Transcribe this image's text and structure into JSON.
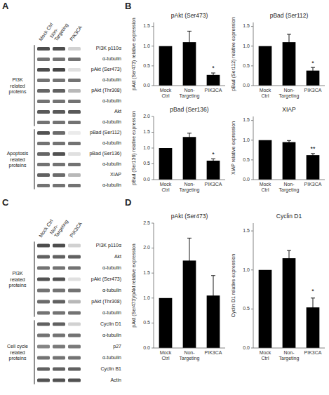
{
  "chart_data": [
    {
      "type": "heatmap",
      "panel": "A",
      "x": [
        "Mock Ctrl",
        "Non-\nTargeting",
        "PIK3CA"
      ],
      "y": [
        "PI3K p110α",
        "α-tubulin",
        "pAkt (Ser473)",
        "α-tubulin",
        "pAkt (Thr308)",
        "α-tubulin",
        "Akt",
        "α-tubulin",
        "pBad (Ser112)",
        "α-tubulin",
        "pBad (Ser136)",
        "α-tubulin",
        "XIAP",
        "α-tubulin"
      ],
      "cells": [
        [
          0.7,
          0.7,
          0.18
        ],
        [
          0.55,
          0.55,
          0.55
        ],
        [
          0.7,
          0.72,
          0.12
        ],
        [
          0.55,
          0.55,
          0.55
        ],
        [
          0.6,
          0.62,
          0.28
        ],
        [
          0.55,
          0.55,
          0.55
        ],
        [
          0.65,
          0.65,
          0.65
        ],
        [
          0.55,
          0.55,
          0.55
        ],
        [
          0.68,
          0.58,
          0.08
        ],
        [
          0.55,
          0.55,
          0.55
        ],
        [
          0.6,
          0.68,
          0.12
        ],
        [
          0.55,
          0.55,
          0.55
        ],
        [
          0.62,
          0.58,
          0.28
        ],
        [
          0.55,
          0.55,
          0.55
        ]
      ],
      "groups": [
        {
          "name": "PI3K\nrelated\nproteins",
          "start": 0,
          "end": 8
        },
        {
          "name": "Apoptosis\nrelated\nproteins",
          "start": 8,
          "end": 14
        }
      ]
    },
    {
      "type": "bar",
      "panel": "B",
      "title": "pAkt (Ser473)",
      "categories": [
        "Mock\nCtrl",
        "Non-\nTargeting",
        "PIK3CA"
      ],
      "values": [
        1.0,
        1.1,
        0.27
      ],
      "errors": [
        0.0,
        0.28,
        0.05
      ],
      "ylabel": "pAkt (Ser473) relative expression",
      "ylim": [
        0,
        1.6
      ],
      "yticks": [
        {
          "value": 0,
          "label": "0.0"
        },
        0.5,
        {
          "value": 1,
          "label": "1.0"
        },
        1.5
      ],
      "color": "#000000",
      "annotations": [
        {
          "category": "PIK3CA",
          "text": "*"
        }
      ]
    },
    {
      "type": "bar",
      "title": "pBad (Ser112)",
      "categories": [
        "Mock\nCtrl",
        "Non-\nTargeting",
        "PIK3CA"
      ],
      "values": [
        1.0,
        1.1,
        0.38
      ],
      "errors": [
        0.0,
        0.2,
        0.08
      ],
      "ylabel": "pBad (Ser112) relative expression",
      "ylim": [
        0,
        1.6
      ],
      "yticks": [
        {
          "value": 0,
          "label": "0.0"
        },
        0.5,
        {
          "value": 1,
          "label": "1.0"
        },
        1.5
      ],
      "color": "#000000",
      "annotations": [
        {
          "category": "PIK3CA",
          "text": "*"
        }
      ]
    },
    {
      "type": "bar",
      "title": "pBad (Ser136)",
      "categories": [
        "Mock\nCtrl",
        "Non-\nTargeting",
        "PIK3CA"
      ],
      "values": [
        1.0,
        1.35,
        0.6
      ],
      "errors": [
        0.0,
        0.12,
        0.06
      ],
      "ylabel": "pBad (Ser136) relative expression",
      "ylim": [
        0,
        2.0
      ],
      "yticks": [
        {
          "value": 0,
          "label": "0.0"
        },
        0.5,
        {
          "value": 1,
          "label": "1.0"
        },
        1.5,
        {
          "value": 2,
          "label": "2.0"
        }
      ],
      "color": "#000000",
      "annotations": [
        {
          "category": "PIK3CA",
          "text": "*"
        }
      ]
    },
    {
      "type": "bar",
      "title": "XIAP",
      "categories": [
        "Mock\nCtrl",
        "Non-\nTargeting",
        "PIK3CA"
      ],
      "values": [
        1.0,
        0.95,
        0.62
      ],
      "errors": [
        0.0,
        0.04,
        0.04
      ],
      "ylabel": "XIAP relative expression",
      "ylim": [
        0,
        1.6
      ],
      "yticks": [
        {
          "value": 0,
          "label": "0.0"
        },
        0.5,
        {
          "value": 1,
          "label": "1.0"
        },
        1.5
      ],
      "color": "#000000",
      "annotations": [
        {
          "category": "PIK3CA",
          "text": "**"
        }
      ]
    },
    {
      "type": "heatmap",
      "panel": "C",
      "x": [
        "Mock Ctrl",
        "Non-\nTargeting",
        "PIK3CA"
      ],
      "y": [
        "PI3K p110α",
        "Akt",
        "α-tubulin",
        "pAkt (Ser473)",
        "α-tubulin",
        "pAkt (Thr308)",
        "α-tubulin",
        "Cyclin D1",
        "α-tubulin",
        "p27",
        "α-tubulin",
        "Cyclin B1",
        "Actin"
      ],
      "cells": [
        [
          0.7,
          0.7,
          0.18
        ],
        [
          0.62,
          0.62,
          0.62
        ],
        [
          0.55,
          0.55,
          0.55
        ],
        [
          0.68,
          0.68,
          0.12
        ],
        [
          0.55,
          0.55,
          0.55
        ],
        [
          0.58,
          0.62,
          0.28
        ],
        [
          0.55,
          0.55,
          0.55
        ],
        [
          0.62,
          0.62,
          0.18
        ],
        [
          0.55,
          0.55,
          0.55
        ],
        [
          0.48,
          0.52,
          0.52
        ],
        [
          0.55,
          0.55,
          0.55
        ],
        [
          0.62,
          0.62,
          0.62
        ],
        [
          0.68,
          0.68,
          0.68
        ]
      ],
      "groups": [
        {
          "name": "PI3K\nrelated\nproteins",
          "start": 0,
          "end": 7
        },
        {
          "name": "Cell cycle\nrelated\nproteins",
          "start": 7,
          "end": 13
        }
      ]
    },
    {
      "type": "bar",
      "panel": "D",
      "title": "pAkt (Ser473)",
      "categories": [
        "Mock\nCtrl",
        "Non-\nTargeting",
        "PIK3CA"
      ],
      "values": [
        1.0,
        1.75,
        1.05
      ],
      "errors": [
        0.0,
        0.45,
        0.4
      ],
      "ylabel": "pAkt (Ser473)/pAkt relative expression",
      "ylim": [
        0,
        2.5
      ],
      "yticks": [
        {
          "value": 0,
          "label": "0.0"
        },
        0.5,
        {
          "value": 1,
          "label": "1.0"
        },
        1.5,
        {
          "value": 2,
          "label": "2.0"
        },
        2.5
      ],
      "color": "#000000"
    },
    {
      "type": "bar",
      "title": "Cyclin D1",
      "categories": [
        "Mock\nCtrl",
        "Non-\nTargeting",
        "PIK3CA"
      ],
      "values": [
        1.0,
        1.15,
        0.52
      ],
      "errors": [
        0.0,
        0.1,
        0.12
      ],
      "ylabel": "Cyclin D1 relative expression",
      "ylim": [
        0,
        1.6
      ],
      "yticks": [
        {
          "value": 0,
          "label": "0.0"
        },
        0.5,
        {
          "value": 1,
          "label": "1.0"
        },
        1.5
      ],
      "color": "#000000",
      "annotations": [
        {
          "category": "PIK3CA",
          "text": "*"
        }
      ]
    }
  ]
}
